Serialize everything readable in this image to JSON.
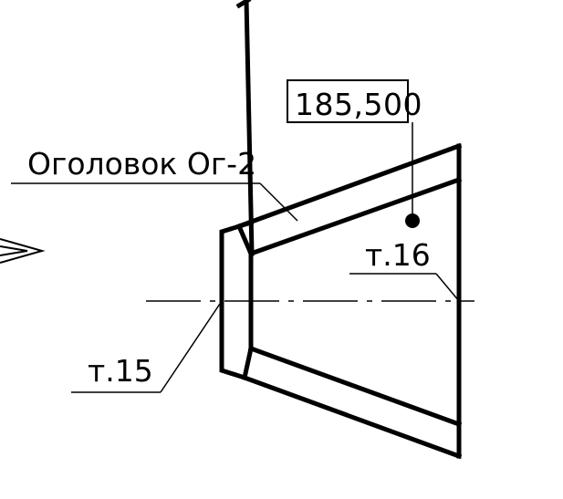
{
  "drawing": {
    "elevation_mark": "185,500",
    "header_label": "Оголовок Ог-2",
    "point_16_label": "т.16",
    "point_15_label": "т.15"
  }
}
